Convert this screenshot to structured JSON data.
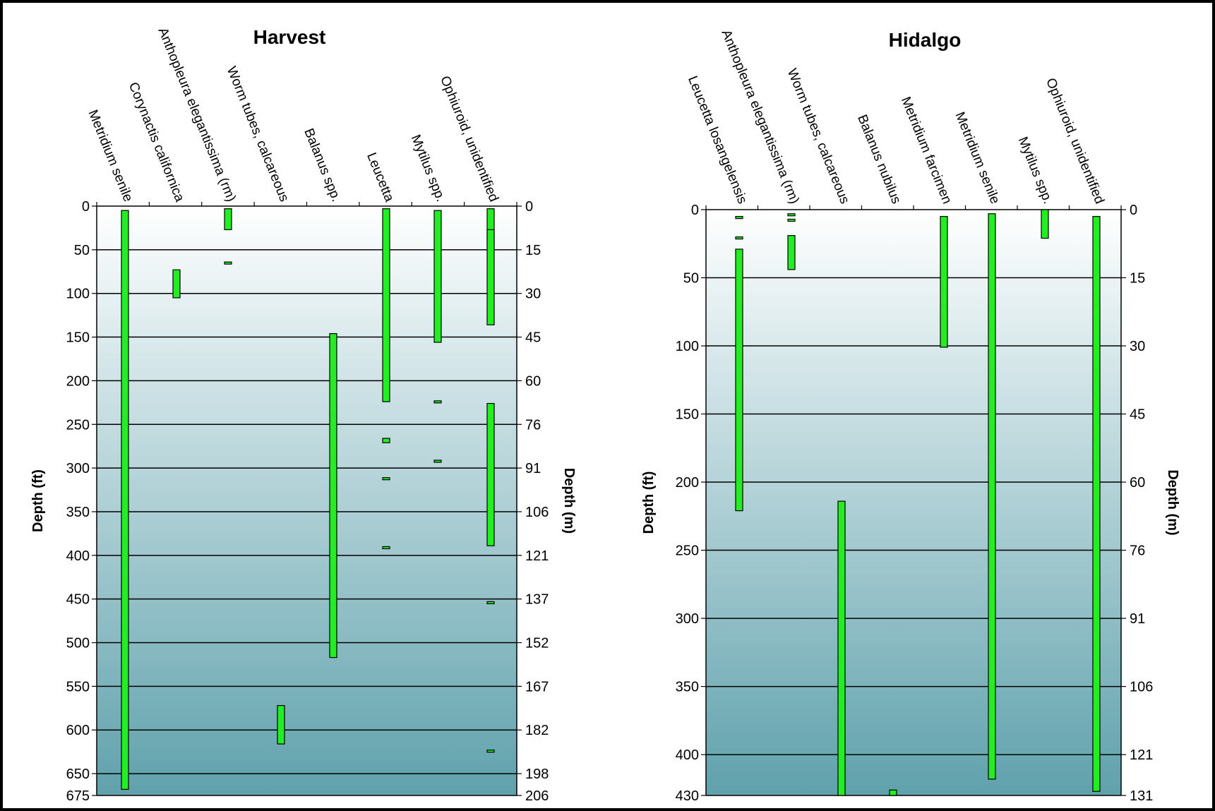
{
  "chart_data": [
    {
      "type": "range-bar",
      "title": "Harvest",
      "ylabel_left": "Depth (ft)",
      "ylabel_right": "Depth (m)",
      "ylim": [
        0,
        675
      ],
      "ft_ticks": [
        0,
        50,
        100,
        150,
        200,
        250,
        300,
        350,
        400,
        450,
        500,
        550,
        600,
        650,
        675
      ],
      "m_ticks": [
        {
          "label": "0",
          "ft": 0
        },
        {
          "label": "15",
          "ft": 50
        },
        {
          "label": "30",
          "ft": 100
        },
        {
          "label": "45",
          "ft": 150
        },
        {
          "label": "60",
          "ft": 200
        },
        {
          "label": "76",
          "ft": 250
        },
        {
          "label": "91",
          "ft": 300
        },
        {
          "label": "106",
          "ft": 350
        },
        {
          "label": "121",
          "ft": 400
        },
        {
          "label": "137",
          "ft": 450
        },
        {
          "label": "152",
          "ft": 500
        },
        {
          "label": "167",
          "ft": 550
        },
        {
          "label": "182",
          "ft": 600
        },
        {
          "label": "198",
          "ft": 650
        },
        {
          "label": "206",
          "ft": 675
        }
      ],
      "gridlines": [
        50,
        100,
        150,
        200,
        250,
        300,
        350,
        400,
        450,
        500,
        550,
        600,
        650
      ],
      "species": [
        {
          "name": "Metridium senile",
          "ranges": [
            [
              5,
              668
            ]
          ]
        },
        {
          "name": "Corynactis californica",
          "ranges": [
            [
              73,
              105
            ]
          ]
        },
        {
          "name": "Anthopleura elegantissima (rm)",
          "ranges": [
            [
              3,
              27
            ],
            [
              64,
              66
            ]
          ]
        },
        {
          "name": "Worm tubes, calcareous",
          "ranges": [
            [
              572,
              616
            ]
          ]
        },
        {
          "name": "Balanus spp.",
          "ranges": [
            [
              146,
              517
            ]
          ]
        },
        {
          "name": "Leucetta",
          "ranges": [
            [
              3,
              224
            ],
            [
              266,
              271
            ],
            [
              311,
              313
            ],
            [
              390,
              392
            ]
          ]
        },
        {
          "name": "Mytilus spp.",
          "ranges": [
            [
              5,
              156
            ],
            [
              223,
              225
            ],
            [
              291,
              293
            ]
          ]
        },
        {
          "name": "Ophiuroid, unidentified",
          "ranges": [
            [
              3,
              46
            ],
            [
              27,
              136
            ],
            [
              226,
              389
            ],
            [
              453,
              455
            ],
            [
              623,
              625
            ]
          ]
        }
      ]
    },
    {
      "type": "range-bar",
      "title": "Hidalgo",
      "ylabel_left": "Depth (ft)",
      "ylabel_right": "Depth (m)",
      "ylim": [
        0,
        430
      ],
      "ft_ticks": [
        0,
        50,
        100,
        150,
        200,
        250,
        300,
        350,
        400,
        430
      ],
      "m_ticks": [
        {
          "label": "0",
          "ft": 0
        },
        {
          "label": "15",
          "ft": 50
        },
        {
          "label": "30",
          "ft": 100
        },
        {
          "label": "45",
          "ft": 150
        },
        {
          "label": "60",
          "ft": 200
        },
        {
          "label": "76",
          "ft": 250
        },
        {
          "label": "91",
          "ft": 300
        },
        {
          "label": "106",
          "ft": 350
        },
        {
          "label": "121",
          "ft": 400
        },
        {
          "label": "131",
          "ft": 430
        }
      ],
      "gridlines": [
        50,
        100,
        150,
        200,
        250,
        300,
        350,
        400
      ],
      "species": [
        {
          "name": "Leucetta losangelensis",
          "ranges": [
            [
              5,
              7
            ],
            [
              20,
              22
            ],
            [
              29,
              221
            ]
          ]
        },
        {
          "name": "Anthopleura elegantissima (rm)",
          "ranges": [
            [
              3,
              4
            ],
            [
              7,
              8
            ],
            [
              19,
              44
            ]
          ]
        },
        {
          "name": "Worm tubes, calcareous",
          "ranges": [
            [
              214,
              430
            ]
          ]
        },
        {
          "name": "Balanus nubilus",
          "ranges": [
            [
              426,
              430
            ]
          ]
        },
        {
          "name": "Metridium farcimen",
          "ranges": [
            [
              5,
              101
            ]
          ]
        },
        {
          "name": "Metridium senile",
          "ranges": [
            [
              3,
              418
            ]
          ]
        },
        {
          "name": "Mytilus spp.",
          "ranges": [
            [
              0,
              21
            ]
          ]
        },
        {
          "name": "Ophiuroid, unidentified",
          "ranges": [
            [
              5,
              427
            ]
          ]
        }
      ]
    }
  ],
  "colors": {
    "bar_fill": "#22ee22",
    "bar_stroke": "#000000",
    "bg_top": "#ffffff",
    "bg_bottom": "#5fa1ac"
  }
}
